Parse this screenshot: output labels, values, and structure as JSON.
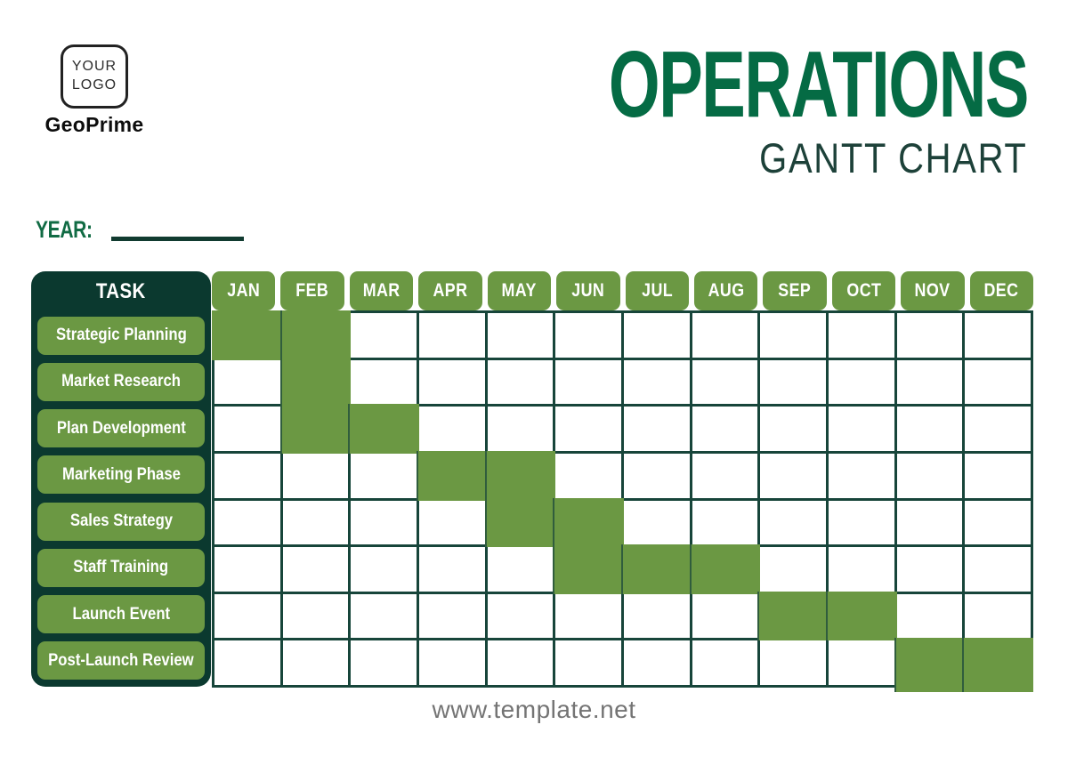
{
  "header": {
    "logo_line1": "YOUR",
    "logo_line2": "LOGO",
    "brand": "GeoPrime",
    "title": "OPERATIONS",
    "subtitle": "GANTT CHART"
  },
  "year": {
    "label": "YEAR:",
    "value": ""
  },
  "footer": {
    "website": "www.template.net"
  },
  "colors": {
    "accent_green": "#6B9843",
    "dark_panel_green": "#0B392F",
    "grid_line_green": "#17453A",
    "title_green": "#056B44",
    "subtitle_dark": "#1D4139",
    "footer_gray": "#747474"
  },
  "chart_data": {
    "type": "gantt",
    "title": "OPERATIONS GANTT CHART",
    "task_column_header": "TASK",
    "months": [
      "JAN",
      "FEB",
      "MAR",
      "APR",
      "MAY",
      "JUN",
      "JUL",
      "AUG",
      "SEP",
      "OCT",
      "NOV",
      "DEC"
    ],
    "tasks": [
      {
        "name": "Strategic Planning",
        "start_month": "JAN",
        "end_month": "FEB",
        "start_index": 0,
        "end_index": 1
      },
      {
        "name": "Market Research",
        "start_month": "FEB",
        "end_month": "FEB",
        "start_index": 1,
        "end_index": 1
      },
      {
        "name": "Plan Development",
        "start_month": "FEB",
        "end_month": "MAR",
        "start_index": 1,
        "end_index": 2
      },
      {
        "name": "Marketing Phase",
        "start_month": "APR",
        "end_month": "MAY",
        "start_index": 3,
        "end_index": 4
      },
      {
        "name": "Sales Strategy",
        "start_month": "MAY",
        "end_month": "JUN",
        "start_index": 4,
        "end_index": 5
      },
      {
        "name": "Staff Training",
        "start_month": "JUN",
        "end_month": "AUG",
        "start_index": 5,
        "end_index": 7
      },
      {
        "name": "Launch Event",
        "start_month": "SEP",
        "end_month": "OCT",
        "start_index": 8,
        "end_index": 9
      },
      {
        "name": "Post-Launch Review",
        "start_month": "NOV",
        "end_month": "DEC",
        "start_index": 10,
        "end_index": 11
      }
    ]
  }
}
